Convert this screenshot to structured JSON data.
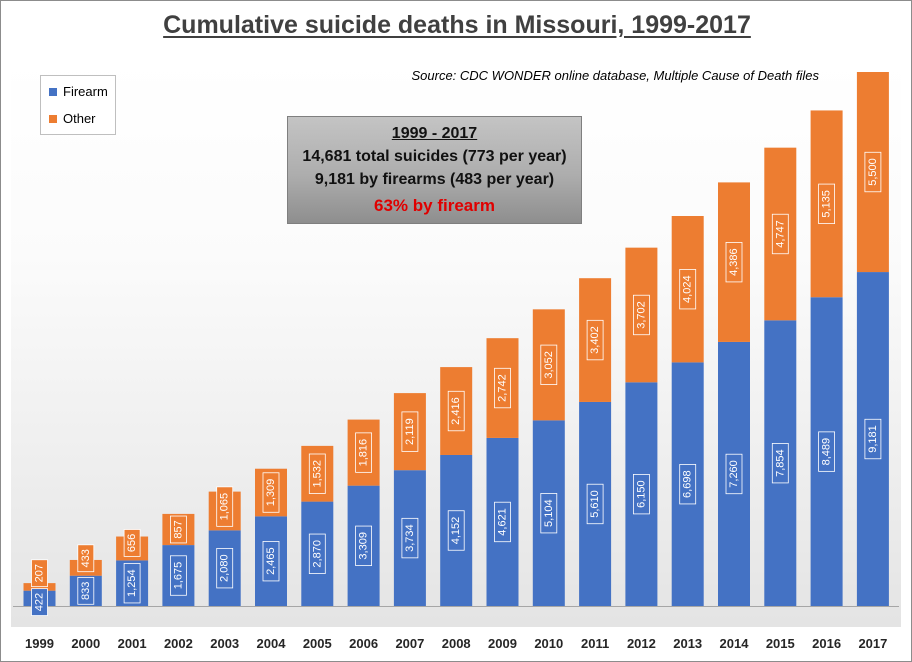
{
  "title": "Cumulative suicide deaths in Missouri, 1999-2017",
  "source": "Source: CDC WONDER online database, Multiple Cause of Death files",
  "infobox": {
    "heading": "1999 - 2017",
    "line1": "14,681 total suicides (773 per year)",
    "line2": "9,181 by firearms (483 per year)",
    "highlight": "63% by firearm",
    "highlight_color": "#e00000"
  },
  "colors": {
    "firearm": "#4472c4",
    "other": "#ed7d31"
  },
  "legend": {
    "placement": "top-left",
    "items": [
      "Firearm",
      "Other"
    ]
  },
  "chart_data": {
    "type": "bar",
    "stacked": true,
    "title": "Cumulative suicide deaths in Missouri, 1999-2017",
    "xlabel": "",
    "ylabel": "",
    "categories": [
      "1999",
      "2000",
      "2001",
      "2002",
      "2003",
      "2004",
      "2005",
      "2006",
      "2007",
      "2008",
      "2009",
      "2010",
      "2011",
      "2012",
      "2013",
      "2014",
      "2015",
      "2016",
      "2017"
    ],
    "series": [
      {
        "name": "Firearm",
        "values": [
          422,
          833,
          1254,
          1675,
          2080,
          2465,
          2870,
          3309,
          3734,
          4152,
          4621,
          5104,
          5610,
          6150,
          6698,
          7260,
          7854,
          8489,
          9181
        ]
      },
      {
        "name": "Other",
        "values": [
          207,
          433,
          656,
          857,
          1065,
          1309,
          1532,
          1816,
          2119,
          2416,
          2742,
          3052,
          3402,
          3702,
          4024,
          4386,
          4747,
          5135,
          5500
        ]
      }
    ],
    "ylim": [
      0,
      14681
    ],
    "grid": false,
    "legend": "top-left"
  }
}
